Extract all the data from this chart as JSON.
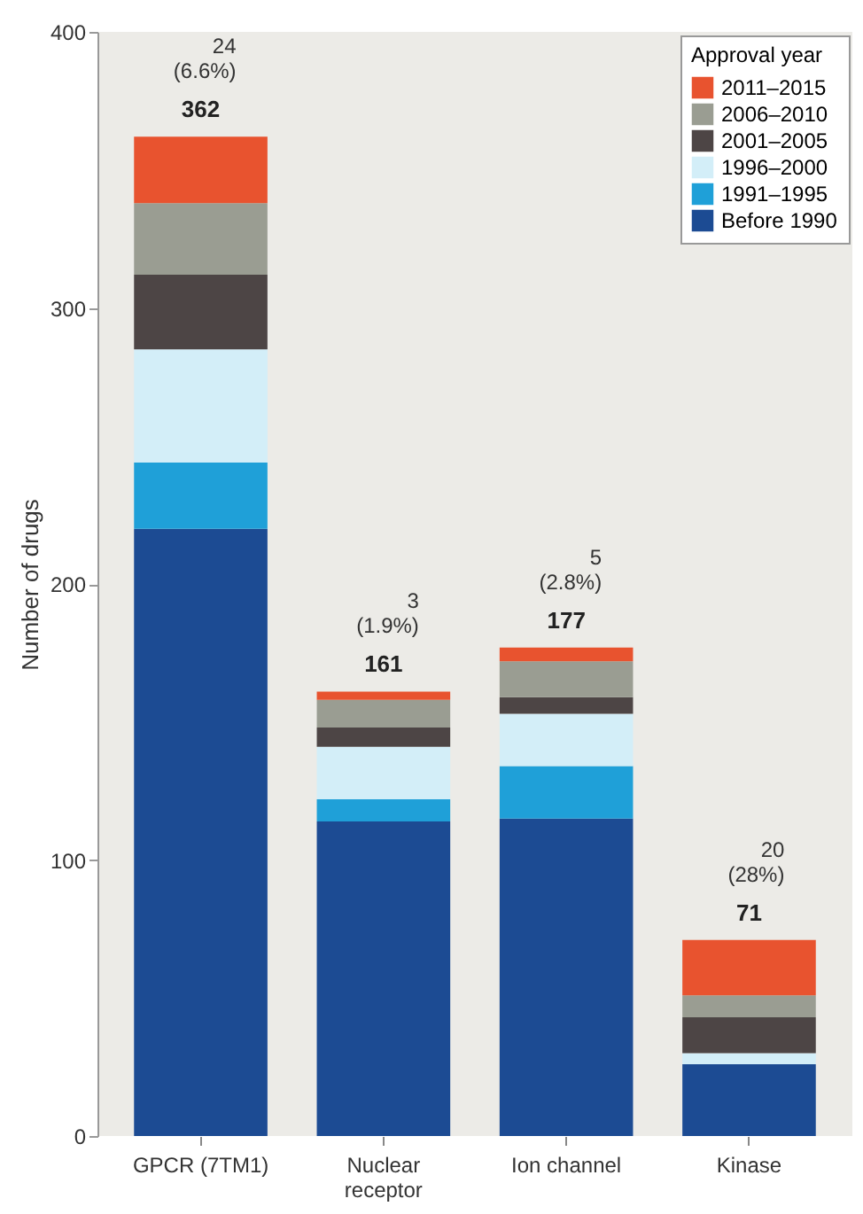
{
  "chart_data": {
    "type": "bar",
    "stacked": true,
    "ylabel": "Number of drugs",
    "legend_title": "Approval year",
    "legend": "top right",
    "grid": false,
    "categories": [
      "GPCR (7TM1)",
      "Nuclear receptor",
      "Ion channel",
      "Kinase"
    ],
    "ylim": [
      0,
      400
    ],
    "yticks": [
      0,
      100,
      200,
      300,
      400
    ],
    "series": [
      {
        "name": "Before 1990",
        "color": "#1c4b93",
        "values": [
          220,
          114,
          115,
          26
        ]
      },
      {
        "name": "1991–1995",
        "color": "#1fa0d8",
        "values": [
          24,
          8,
          19,
          0
        ]
      },
      {
        "name": "1996–2000",
        "color": "#d3eef8",
        "values": [
          41,
          19,
          19,
          4
        ]
      },
      {
        "name": "2001–2005",
        "color": "#4d4545",
        "values": [
          27,
          7,
          6,
          13
        ]
      },
      {
        "name": "2006–2010",
        "color": "#9a9d92",
        "values": [
          26,
          10,
          13,
          8
        ]
      },
      {
        "name": "2011–2015",
        "color": "#e8532f",
        "values": [
          24,
          3,
          5,
          20
        ]
      }
    ],
    "totals": [
      "362",
      "161",
      "177",
      "71"
    ],
    "annotations": [
      {
        "text": "24\n(6.6%)",
        "x": "GPCR (7TM1)",
        "y": 362
      },
      {
        "text": "3\n(1.9%)",
        "x": "Nuclear receptor",
        "y": 161
      },
      {
        "text": "5\n(2.8%)",
        "x": "Ion channel",
        "y": 177
      },
      {
        "text": "20\n(28%)",
        "x": "Kinase",
        "y": 71
      }
    ]
  }
}
